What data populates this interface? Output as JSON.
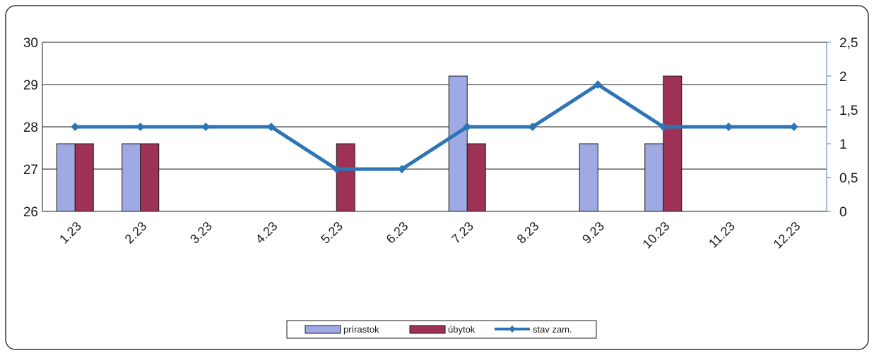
{
  "chart_data": {
    "type": "bar",
    "categories": [
      "1.23",
      "2.23",
      "3.23",
      "4.23",
      "5.23",
      "6.23",
      "7.23",
      "8.23",
      "9.23",
      "10.23",
      "11.23",
      "12.23"
    ],
    "series": [
      {
        "name": "prírastok",
        "kind": "bar",
        "axis": "right",
        "color": "#9fa9e3",
        "values": [
          1,
          1,
          null,
          null,
          null,
          null,
          2,
          null,
          1,
          1,
          null,
          null
        ]
      },
      {
        "name": "úbytok",
        "kind": "bar",
        "axis": "right",
        "color": "#9e3255",
        "values": [
          1,
          1,
          null,
          null,
          1,
          null,
          1,
          null,
          null,
          2,
          null,
          null
        ]
      },
      {
        "name": "stav zam.",
        "kind": "line",
        "axis": "left",
        "color": "#2e75b6",
        "values": [
          28,
          28,
          28,
          28,
          27,
          27,
          28,
          28,
          29,
          28,
          28,
          28
        ]
      }
    ],
    "left_axis": {
      "ylim": [
        26,
        30
      ],
      "ticks": [
        "26",
        "27",
        "28",
        "29",
        "30"
      ]
    },
    "right_axis": {
      "ylim": [
        0,
        2.5
      ],
      "ticks": [
        "0",
        "0,5",
        "1",
        "1,5",
        "2",
        "2,5"
      ]
    },
    "grid": true,
    "legend_position": "bottom-center"
  }
}
